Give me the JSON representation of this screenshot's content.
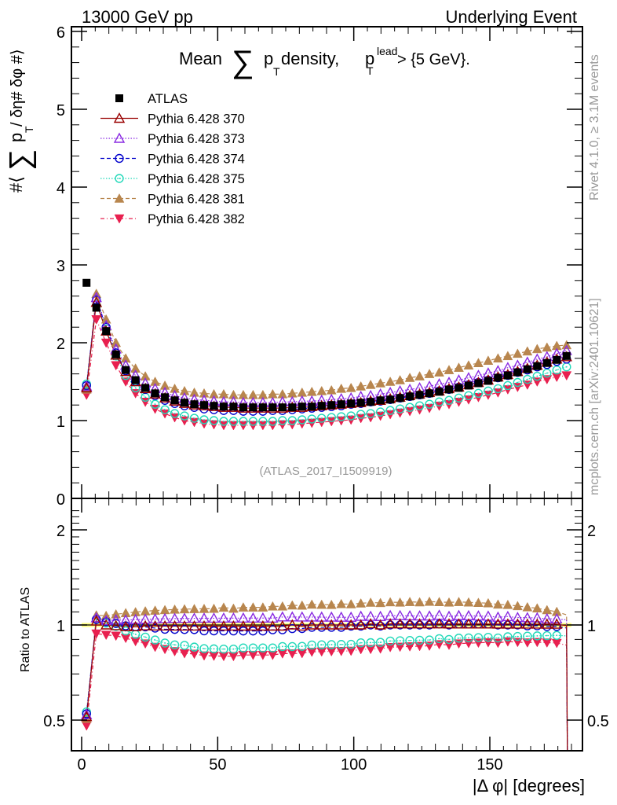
{
  "header": {
    "left": "13000 GeV pp",
    "right": "Underlying Event"
  },
  "side_labels": {
    "rivet": "Rivet 4.1.0, ≥ 3.1M events",
    "mcplots": "mcplots.cern.ch [arXiv:2401.10621]"
  },
  "chart_data": [
    {
      "type": "scatter",
      "panel": "main",
      "title_parts": {
        "prefix": "Mean",
        "sum": "∑",
        "p": "p",
        "sub_T": "T",
        "mid": " density, ",
        "p2": "p",
        "sup_lead": "lead",
        "sub_T2": "T",
        "suffix": " > {5 GeV}."
      },
      "ylabel_parts": {
        "pre": "#⟨",
        "sum": "∑",
        "p": "p",
        "sub_T": "T",
        "post": " / δη# δφ #⟩"
      },
      "xlabel": "|Δ φ| [degrees]",
      "xlim": [
        -4,
        184
      ],
      "ylim": [
        0,
        6
      ],
      "yticks": [
        0,
        1,
        2,
        3,
        4,
        5,
        6
      ],
      "xticks": [
        0,
        50,
        100,
        150
      ],
      "annotation": "(ATLAS_2017_I1509919)",
      "legend_position": "top-left",
      "x": [
        1.8,
        5.4,
        9.0,
        12.6,
        16.2,
        19.8,
        23.4,
        27.0,
        30.6,
        34.2,
        37.8,
        41.4,
        45.0,
        48.6,
        52.2,
        55.8,
        59.4,
        63.0,
        66.6,
        70.2,
        73.8,
        77.4,
        81.0,
        84.6,
        88.2,
        91.8,
        95.4,
        99.0,
        102.6,
        106.2,
        109.8,
        113.4,
        117.0,
        120.6,
        124.2,
        127.8,
        131.4,
        135.0,
        138.6,
        142.2,
        145.8,
        149.4,
        153.0,
        156.6,
        160.2,
        163.8,
        167.4,
        171.0,
        174.6,
        178.2
      ],
      "series": [
        {
          "name": "ATLAS",
          "color": "#000000",
          "marker": "square",
          "line": "none",
          "values": [
            2.77,
            2.45,
            2.15,
            1.85,
            1.65,
            1.52,
            1.42,
            1.35,
            1.3,
            1.26,
            1.23,
            1.21,
            1.2,
            1.19,
            1.18,
            1.18,
            1.17,
            1.17,
            1.17,
            1.17,
            1.17,
            1.17,
            1.18,
            1.18,
            1.19,
            1.2,
            1.21,
            1.22,
            1.23,
            1.24,
            1.26,
            1.27,
            1.29,
            1.31,
            1.33,
            1.35,
            1.37,
            1.4,
            1.42,
            1.45,
            1.48,
            1.51,
            1.55,
            1.58,
            1.62,
            1.66,
            1.7,
            1.74,
            1.78,
            1.83
          ]
        },
        {
          "name": "Pythia 6.428 370",
          "color": "#990000",
          "marker": "triangle-up-open",
          "line": "solid",
          "values": [
            1.42,
            2.52,
            2.15,
            1.84,
            1.63,
            1.5,
            1.41,
            1.34,
            1.29,
            1.25,
            1.22,
            1.2,
            1.19,
            1.18,
            1.17,
            1.17,
            1.16,
            1.16,
            1.16,
            1.16,
            1.16,
            1.17,
            1.17,
            1.18,
            1.19,
            1.2,
            1.21,
            1.22,
            1.23,
            1.25,
            1.26,
            1.28,
            1.3,
            1.32,
            1.34,
            1.36,
            1.38,
            1.41,
            1.43,
            1.46,
            1.49,
            1.52,
            1.56,
            1.59,
            1.63,
            1.67,
            1.71,
            1.75,
            1.79,
            1.82
          ]
        },
        {
          "name": "Pythia 6.428 373",
          "color": "#8a2be2",
          "marker": "triangle-up-open",
          "line": "dotted",
          "values": [
            1.44,
            2.58,
            2.22,
            1.92,
            1.71,
            1.58,
            1.48,
            1.41,
            1.36,
            1.32,
            1.29,
            1.27,
            1.26,
            1.25,
            1.24,
            1.24,
            1.23,
            1.23,
            1.23,
            1.23,
            1.24,
            1.24,
            1.25,
            1.25,
            1.26,
            1.27,
            1.28,
            1.29,
            1.31,
            1.32,
            1.34,
            1.36,
            1.38,
            1.4,
            1.42,
            1.44,
            1.47,
            1.49,
            1.52,
            1.55,
            1.58,
            1.61,
            1.64,
            1.68,
            1.71,
            1.75,
            1.79,
            1.82,
            1.86,
            1.9
          ]
        },
        {
          "name": "Pythia 6.428 374",
          "color": "#0000cc",
          "marker": "circle-open",
          "line": "dashed",
          "values": [
            1.45,
            2.55,
            2.2,
            1.87,
            1.64,
            1.5,
            1.4,
            1.32,
            1.26,
            1.22,
            1.19,
            1.17,
            1.15,
            1.14,
            1.13,
            1.13,
            1.12,
            1.12,
            1.12,
            1.13,
            1.13,
            1.14,
            1.15,
            1.16,
            1.17,
            1.18,
            1.19,
            1.21,
            1.22,
            1.24,
            1.25,
            1.27,
            1.29,
            1.31,
            1.33,
            1.35,
            1.38,
            1.4,
            1.43,
            1.46,
            1.49,
            1.52,
            1.55,
            1.58,
            1.62,
            1.65,
            1.69,
            1.72,
            1.76,
            1.79
          ]
        },
        {
          "name": "Pythia 6.428 375",
          "color": "#20d8b8",
          "marker": "circle-open-dot",
          "line": "dotted",
          "values": [
            1.47,
            2.55,
            2.18,
            1.83,
            1.58,
            1.42,
            1.3,
            1.21,
            1.14,
            1.09,
            1.06,
            1.03,
            1.01,
            1.0,
            0.99,
            0.99,
            0.99,
            0.99,
            0.99,
            0.99,
            1.0,
            1.0,
            1.01,
            1.02,
            1.03,
            1.04,
            1.05,
            1.06,
            1.08,
            1.09,
            1.11,
            1.13,
            1.15,
            1.17,
            1.19,
            1.21,
            1.24,
            1.26,
            1.29,
            1.32,
            1.35,
            1.38,
            1.41,
            1.45,
            1.49,
            1.53,
            1.57,
            1.61,
            1.65,
            1.69
          ]
        },
        {
          "name": "Pythia 6.428 381",
          "color": "#b8864e",
          "marker": "triangle-up-filled",
          "line": "dashed",
          "values": [
            1.4,
            2.63,
            2.3,
            2.0,
            1.8,
            1.67,
            1.57,
            1.5,
            1.45,
            1.41,
            1.38,
            1.36,
            1.35,
            1.34,
            1.34,
            1.33,
            1.33,
            1.33,
            1.33,
            1.34,
            1.34,
            1.35,
            1.36,
            1.37,
            1.38,
            1.39,
            1.41,
            1.42,
            1.44,
            1.46,
            1.48,
            1.5,
            1.52,
            1.55,
            1.57,
            1.6,
            1.62,
            1.65,
            1.68,
            1.71,
            1.74,
            1.77,
            1.8,
            1.83,
            1.86,
            1.89,
            1.92,
            1.94,
            1.96,
            1.97
          ]
        },
        {
          "name": "Pythia 6.428 382",
          "color": "#e8204f",
          "marker": "triangle-down-filled",
          "line": "dashdot",
          "values": [
            1.33,
            2.3,
            2.0,
            1.71,
            1.5,
            1.35,
            1.24,
            1.15,
            1.09,
            1.04,
            1.0,
            0.98,
            0.96,
            0.95,
            0.94,
            0.94,
            0.94,
            0.94,
            0.94,
            0.94,
            0.95,
            0.95,
            0.96,
            0.97,
            0.98,
            0.99,
            1.0,
            1.01,
            1.03,
            1.04,
            1.06,
            1.08,
            1.1,
            1.12,
            1.14,
            1.16,
            1.19,
            1.21,
            1.24,
            1.27,
            1.3,
            1.33,
            1.36,
            1.4,
            1.43,
            1.46,
            1.5,
            1.53,
            1.56,
            1.58
          ]
        }
      ]
    },
    {
      "type": "scatter",
      "panel": "ratio",
      "ylabel": "Ratio to ATLAS",
      "xlabel": "|Δ φ| [degrees]",
      "yscale": "log",
      "ylim": [
        0.35,
        2.4
      ],
      "yticks": [
        0.5,
        1,
        2
      ],
      "xticks": [
        0,
        50,
        100,
        150
      ],
      "band_color": "#ffff66",
      "reference": 1.0
    }
  ]
}
